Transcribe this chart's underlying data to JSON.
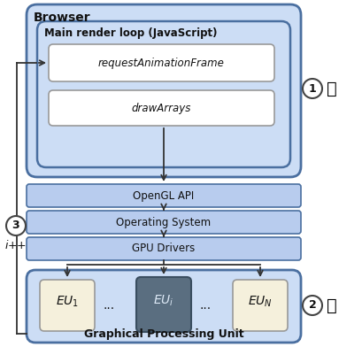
{
  "fig_width": 4.1,
  "fig_height": 3.92,
  "dpi": 100,
  "bg_color": "#ffffff",
  "light_blue": "#ccddf5",
  "med_blue": "#b8ccee",
  "dark_blue": "#4a6fa0",
  "box_white": "#ffffff",
  "box_cream": "#f5f0dc",
  "box_gray": "#5a6e80",
  "text_dark": "#111111",
  "arrow_color": "#333333",
  "browser_label": "Browser",
  "main_loop_label": "Main render loop (JavaScript)",
  "raf_label": "requestAnimationFrame",
  "draw_label": "drawArrays",
  "opengl_label": "OpenGL API",
  "os_label": "Operating System",
  "gpu_drivers_label": "GPU Drivers",
  "gpu_label": "Graphical Processing Unit",
  "circle1": "1",
  "circle2": "2",
  "circle3": "3",
  "iplus": "i ++",
  "palette_emoji": "🎨",
  "stopwatch_emoji": "⏱"
}
